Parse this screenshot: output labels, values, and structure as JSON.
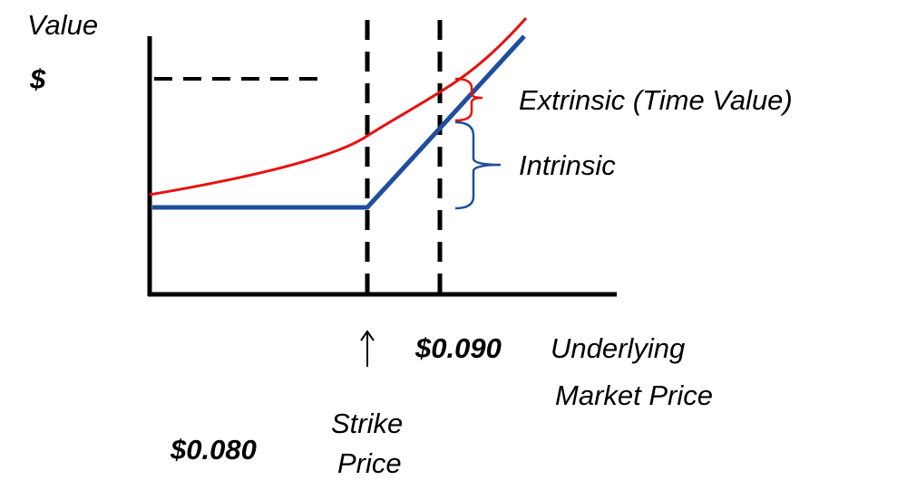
{
  "diagram": {
    "y_axis_label": "Value",
    "y_axis_unit": "$",
    "extrinsic_label": "Extrinsic (Time Value)",
    "intrinsic_label": "Intrinsic",
    "market_price_value": "$0.090",
    "market_price_label_line1": "Underlying",
    "market_price_label_line2": "Market Price",
    "strike_label_line1": "Strike",
    "strike_label_line2": "Price",
    "strike_value": "$0.080"
  }
}
